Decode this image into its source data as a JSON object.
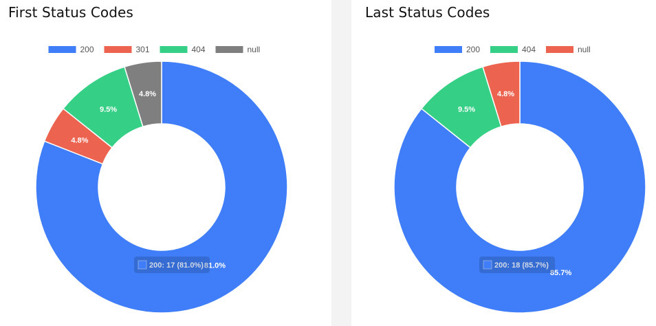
{
  "chart_data": [
    {
      "type": "pie",
      "title": "First Status Codes",
      "donut": true,
      "legend_position": "top",
      "series": [
        {
          "name": "200",
          "value": 17,
          "percent": 81.0,
          "label": "81.0%",
          "color": "#3f7ef8"
        },
        {
          "name": "301",
          "value": 1,
          "percent": 4.8,
          "label": "4.8%",
          "color": "#ec6450"
        },
        {
          "name": "404",
          "value": 2,
          "percent": 9.5,
          "label": "9.5%",
          "color": "#35d085"
        },
        {
          "name": "null",
          "value": 1,
          "percent": 4.8,
          "label": "4.8%",
          "color": "#7f7f7f"
        }
      ],
      "tooltip": "200: 17 (81.0%)"
    },
    {
      "type": "pie",
      "title": "Last Status Codes",
      "donut": true,
      "legend_position": "top",
      "series": [
        {
          "name": "200",
          "value": 18,
          "percent": 85.7,
          "label": "85.7%",
          "color": "#3f7ef8"
        },
        {
          "name": "404",
          "value": 2,
          "percent": 9.5,
          "label": "9.5%",
          "color": "#35d085"
        },
        {
          "name": "null",
          "value": 1,
          "percent": 4.8,
          "label": "4.8%",
          "color": "#ec6450"
        }
      ],
      "tooltip": "200: 18 (85.7%)"
    }
  ]
}
